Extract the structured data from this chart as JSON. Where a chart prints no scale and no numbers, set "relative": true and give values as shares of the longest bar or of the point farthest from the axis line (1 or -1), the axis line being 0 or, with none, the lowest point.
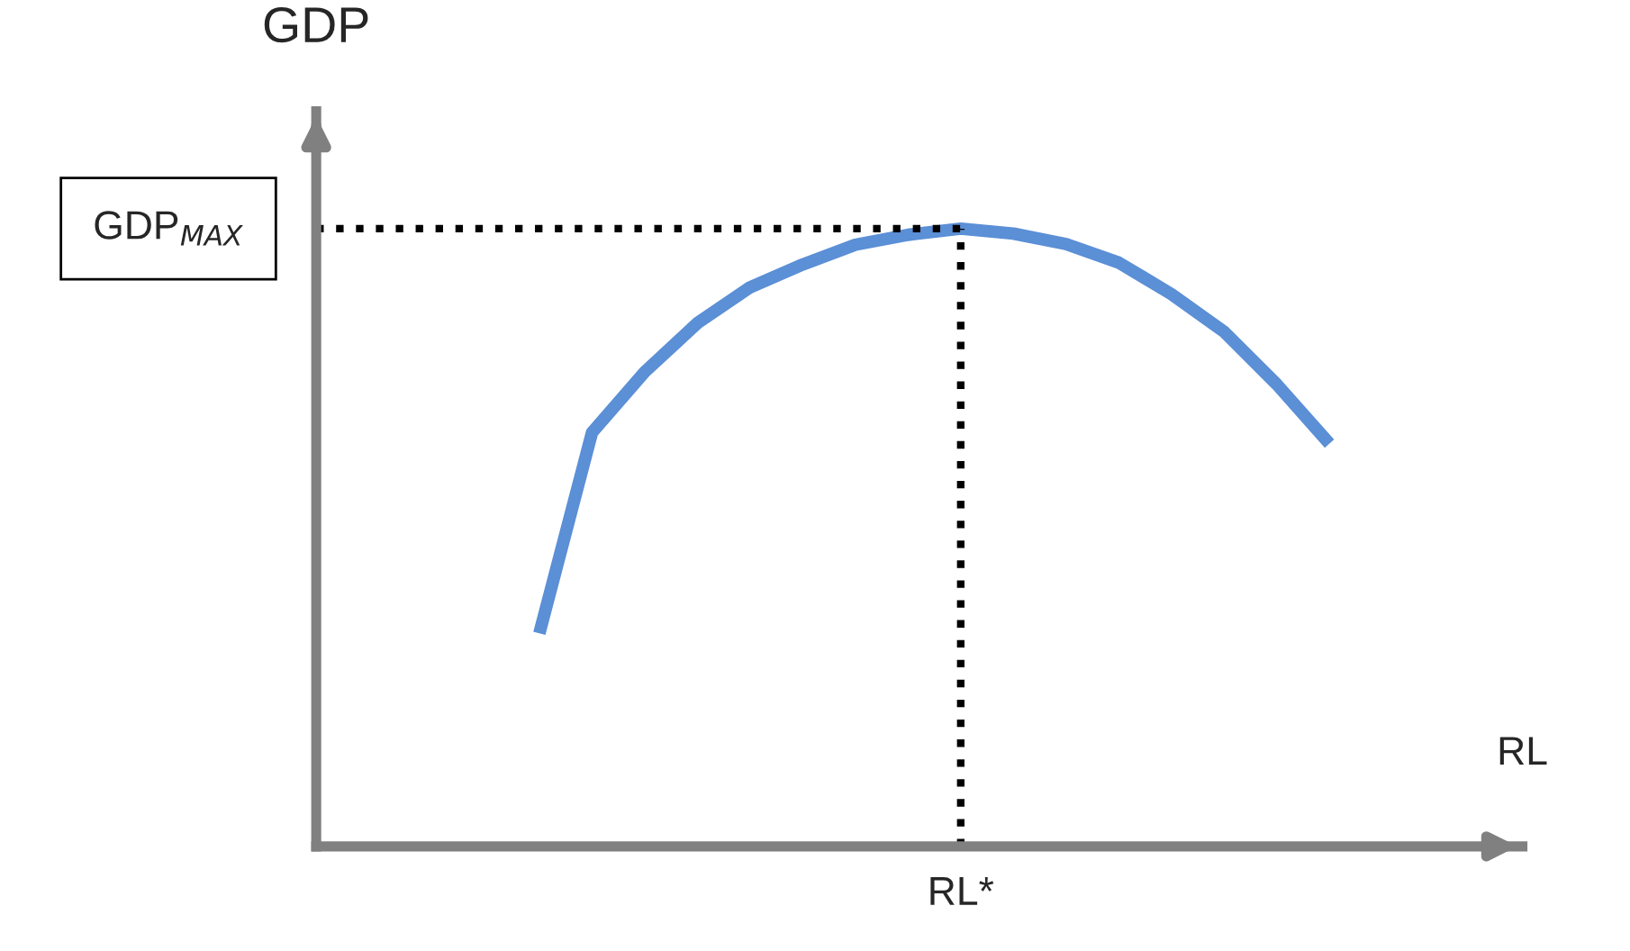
{
  "chart_data": {
    "type": "line",
    "relative": true,
    "ylabel": "GDP",
    "xlabel": "RL",
    "categories": [
      null,
      null,
      null,
      null,
      null,
      null,
      null,
      null,
      null,
      null,
      null,
      null,
      null,
      null,
      null,
      null
    ],
    "series": [
      {
        "color": "#5b8fd6",
        "values": [
          0.345,
          0.67,
          0.768,
          0.847,
          0.905,
          0.942,
          0.974,
          0.99,
          1,
          0.992,
          0.975,
          0.945,
          0.894,
          0.833,
          0.748,
          0.652
        ]
      }
    ],
    "ref_lines": [
      {
        "axis": "y",
        "value": 1,
        "label": "GDP$_{MAX}$",
        "line_style": "dotted",
        "color": "#000000"
      },
      {
        "axis": "x",
        "label": "RL*",
        "line_style": "dotted",
        "color": "#000000"
      }
    ],
    "marker": "none",
    "line_style": "solid"
  }
}
